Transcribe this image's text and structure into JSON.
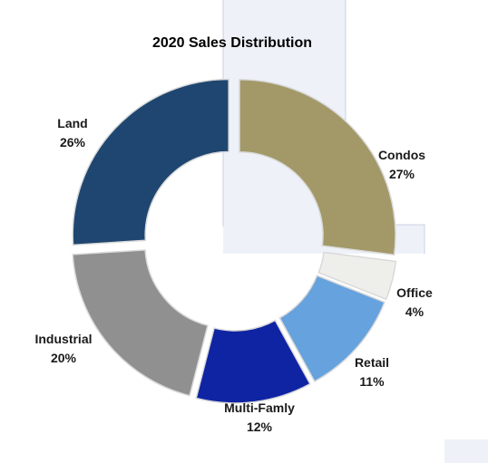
{
  "chart_data": {
    "type": "pie",
    "title": "2020  Sales Distribution",
    "donut": true,
    "exploded": true,
    "slices": [
      {
        "name": "Condos",
        "value": 27,
        "label": "27%",
        "color": "#a39968"
      },
      {
        "name": "Office",
        "value": 4,
        "label": "4%",
        "color": "#eeeeea"
      },
      {
        "name": "Retail",
        "value": 11,
        "label": "11%",
        "color": "#65a2de"
      },
      {
        "name": "Multi-Famly",
        "value": 12,
        "label": "12%",
        "color": "#0f24a3"
      },
      {
        "name": "Industrial",
        "value": 20,
        "label": "20%",
        "color": "#909090"
      },
      {
        "name": "Land",
        "value": 26,
        "label": "26%",
        "color": "#1e4670"
      }
    ]
  }
}
